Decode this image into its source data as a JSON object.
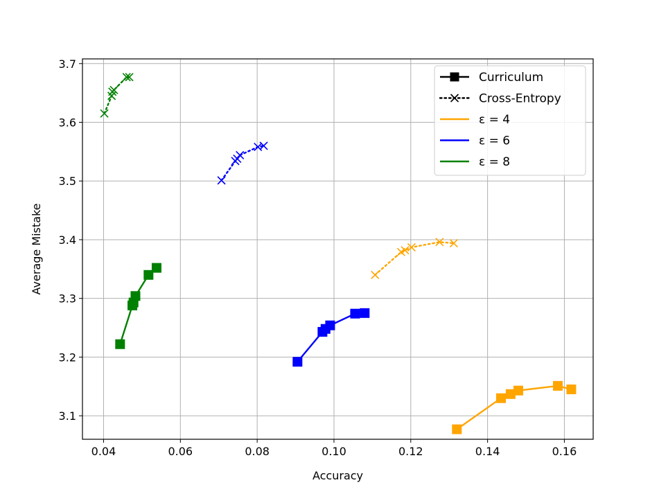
{
  "chart_data": {
    "type": "line",
    "title": "",
    "xlabel": "Accuracy",
    "ylabel": "Average Mistake",
    "xlim": [
      0.0345,
      0.1675
    ],
    "ylim": [
      3.06,
      3.708
    ],
    "xticks": [
      0.04,
      0.06,
      0.08,
      0.1,
      0.12,
      0.14,
      0.16
    ],
    "xtick_labels": [
      "0.04",
      "0.06",
      "0.08",
      "0.10",
      "0.12",
      "0.14",
      "0.16"
    ],
    "yticks": [
      3.1,
      3.2,
      3.3,
      3.4,
      3.5,
      3.6,
      3.7
    ],
    "ytick_labels": [
      "3.1",
      "3.2",
      "3.3",
      "3.4",
      "3.5",
      "3.6",
      "3.7"
    ],
    "grid": true,
    "legend_position": "top-right",
    "legend": [
      {
        "label": "Curriculum",
        "style": "solid-square",
        "color": "#000000"
      },
      {
        "label": "Cross-Entropy",
        "style": "dotted-x",
        "color": "#000000"
      },
      {
        "label": "ε = 4",
        "style": "line",
        "color": "#ffa500"
      },
      {
        "label": "ε = 6",
        "style": "line",
        "color": "#0000ff"
      },
      {
        "label": "ε = 8",
        "style": "line",
        "color": "#008000"
      }
    ],
    "series": [
      {
        "method": "Curriculum",
        "epsilon": 4,
        "color": "#ffa500",
        "linestyle": "solid",
        "marker": "square",
        "points": [
          [
            0.132,
            3.077
          ],
          [
            0.1435,
            3.13
          ],
          [
            0.146,
            3.137
          ],
          [
            0.148,
            3.143
          ],
          [
            0.1583,
            3.151
          ],
          [
            0.1618,
            3.145
          ]
        ]
      },
      {
        "method": "Cross-Entropy",
        "epsilon": 4,
        "color": "#ffa500",
        "linestyle": "dotted",
        "marker": "x",
        "points": [
          [
            0.1107,
            3.34
          ],
          [
            0.1175,
            3.379
          ],
          [
            0.1185,
            3.382
          ],
          [
            0.1202,
            3.387
          ],
          [
            0.1275,
            3.396
          ],
          [
            0.1312,
            3.394
          ]
        ]
      },
      {
        "method": "Curriculum",
        "epsilon": 6,
        "color": "#0000ff",
        "linestyle": "solid",
        "marker": "square",
        "points": [
          [
            0.0905,
            3.192
          ],
          [
            0.097,
            3.243
          ],
          [
            0.0978,
            3.248
          ],
          [
            0.099,
            3.254
          ],
          [
            0.1055,
            3.274
          ],
          [
            0.108,
            3.275
          ]
        ]
      },
      {
        "method": "Cross-Entropy",
        "epsilon": 6,
        "color": "#0000ff",
        "linestyle": "dotted",
        "marker": "x",
        "points": [
          [
            0.0707,
            3.501
          ],
          [
            0.0743,
            3.534
          ],
          [
            0.0748,
            3.538
          ],
          [
            0.0755,
            3.544
          ],
          [
            0.0802,
            3.558
          ],
          [
            0.0817,
            3.56
          ]
        ]
      },
      {
        "method": "Curriculum",
        "epsilon": 8,
        "color": "#008000",
        "linestyle": "solid",
        "marker": "square",
        "points": [
          [
            0.0443,
            3.222
          ],
          [
            0.0475,
            3.288
          ],
          [
            0.0478,
            3.293
          ],
          [
            0.0483,
            3.304
          ],
          [
            0.0517,
            3.34
          ],
          [
            0.0538,
            3.352
          ]
        ]
      },
      {
        "method": "Cross-Entropy",
        "epsilon": 8,
        "color": "#008000",
        "linestyle": "dotted",
        "marker": "x",
        "points": [
          [
            0.0402,
            3.615
          ],
          [
            0.0421,
            3.645
          ],
          [
            0.0423,
            3.652
          ],
          [
            0.0427,
            3.655
          ],
          [
            0.046,
            3.677
          ],
          [
            0.0467,
            3.677
          ]
        ]
      }
    ]
  }
}
